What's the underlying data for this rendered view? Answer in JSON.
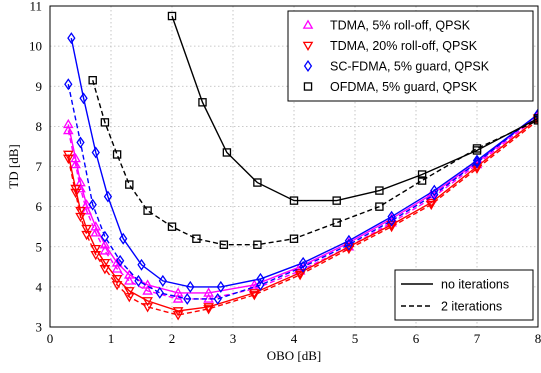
{
  "chart_data": {
    "type": "line",
    "title": "",
    "xlabel": "OBO [dB]",
    "ylabel": "TD [dB]",
    "xlim": [
      0,
      8
    ],
    "ylim": [
      3,
      11
    ],
    "xticks": [
      "0",
      "1",
      "2",
      "3",
      "4",
      "5",
      "6",
      "7",
      "8"
    ],
    "yticks": [
      "3",
      "4",
      "5",
      "6",
      "7",
      "8",
      "9",
      "10",
      "11"
    ],
    "grid": true,
    "series": [
      {
        "name": "TDMA, 5% roll-off, QPSK",
        "color": "#ff00ff",
        "marker": "triangle-up",
        "style": "solid",
        "x": [
          0.3,
          0.42,
          0.5,
          0.6,
          0.75,
          0.9,
          1.1,
          1.3,
          1.6,
          2.1,
          2.6,
          3.35,
          4.1,
          4.9,
          5.6,
          6.25,
          7.0,
          8.0
        ],
        "y": [
          8.05,
          7.2,
          6.6,
          6.05,
          5.5,
          5.05,
          4.6,
          4.3,
          4.05,
          3.85,
          3.85,
          4.05,
          4.5,
          5.1,
          5.7,
          6.3,
          7.1,
          8.3
        ]
      },
      {
        "name": "",
        "color": "#ff00ff",
        "marker": "triangle-up",
        "style": "dashed",
        "x": [
          0.3,
          0.42,
          0.5,
          0.6,
          0.75,
          0.9,
          1.1,
          1.3,
          1.6,
          2.1,
          2.6,
          3.35,
          4.1,
          4.9,
          5.6,
          6.25,
          7.0,
          8.0
        ],
        "y": [
          7.9,
          7.05,
          6.45,
          5.9,
          5.35,
          4.9,
          4.45,
          4.15,
          3.9,
          3.7,
          3.7,
          3.95,
          4.4,
          5.0,
          5.6,
          6.2,
          7.05,
          8.25
        ]
      },
      {
        "name": "TDMA, 20% roll-off, QPSK",
        "color": "#ff0000",
        "marker": "triangle-down",
        "style": "solid",
        "x": [
          0.3,
          0.42,
          0.5,
          0.6,
          0.75,
          0.9,
          1.1,
          1.3,
          1.6,
          2.1,
          2.6,
          3.35,
          4.1,
          4.9,
          5.6,
          6.25,
          7.0,
          8.0
        ],
        "y": [
          7.3,
          6.45,
          5.9,
          5.45,
          4.95,
          4.6,
          4.2,
          3.9,
          3.65,
          3.4,
          3.5,
          3.85,
          4.35,
          5.0,
          5.55,
          6.1,
          7.0,
          8.2
        ]
      },
      {
        "name": "",
        "color": "#ff0000",
        "marker": "triangle-down",
        "style": "dashed",
        "x": [
          0.3,
          0.42,
          0.5,
          0.6,
          0.75,
          0.9,
          1.1,
          1.3,
          1.6,
          2.1,
          2.6,
          3.35,
          4.1,
          4.9,
          5.6,
          6.25,
          7.0,
          8.0
        ],
        "y": [
          7.2,
          6.35,
          5.75,
          5.3,
          4.8,
          4.45,
          4.05,
          3.75,
          3.5,
          3.3,
          3.45,
          3.8,
          4.3,
          4.95,
          5.5,
          6.05,
          6.95,
          8.15
        ]
      },
      {
        "name": "SC-FDMA, 5% guard, QPSK",
        "color": "#0000ff",
        "marker": "diamond",
        "style": "solid",
        "x": [
          0.35,
          0.55,
          0.75,
          0.95,
          1.2,
          1.5,
          1.85,
          2.3,
          2.8,
          3.45,
          4.15,
          4.9,
          5.6,
          6.3,
          7.0,
          8.0
        ],
        "y": [
          10.2,
          8.7,
          7.35,
          6.25,
          5.2,
          4.55,
          4.15,
          4.0,
          4.0,
          4.2,
          4.6,
          5.15,
          5.75,
          6.4,
          7.15,
          8.3
        ]
      },
      {
        "name": "",
        "color": "#0000ff",
        "marker": "diamond",
        "style": "dashed",
        "x": [
          0.3,
          0.5,
          0.7,
          0.9,
          1.15,
          1.45,
          1.8,
          2.25,
          2.75,
          3.45,
          4.15,
          4.9,
          5.6,
          6.3,
          7.0,
          8.0
        ],
        "y": [
          9.05,
          7.6,
          6.05,
          5.25,
          4.65,
          4.15,
          3.85,
          3.7,
          3.7,
          4.05,
          4.5,
          5.05,
          5.65,
          6.3,
          7.1,
          8.3
        ]
      },
      {
        "name": "OFDMA, 5% guard, QPSK",
        "color": "#000000",
        "marker": "square",
        "style": "solid",
        "x": [
          2.0,
          2.5,
          2.9,
          3.4,
          4.0,
          4.7,
          5.4,
          6.1,
          7.0,
          8.0
        ],
        "y": [
          10.75,
          8.6,
          7.35,
          6.6,
          6.15,
          6.15,
          6.4,
          6.8,
          7.4,
          8.2
        ]
      },
      {
        "name": "",
        "color": "#000000",
        "marker": "square",
        "style": "dashed",
        "x": [
          0.7,
          0.9,
          1.1,
          1.3,
          1.6,
          2.0,
          2.4,
          2.85,
          3.4,
          4.0,
          4.7,
          5.4,
          6.1,
          7.0,
          8.0
        ],
        "y": [
          9.15,
          8.1,
          7.3,
          6.55,
          5.9,
          5.5,
          5.2,
          5.05,
          5.05,
          5.2,
          5.6,
          6.0,
          6.65,
          7.45,
          8.15
        ]
      }
    ],
    "legend_markers": {
      "entries": [
        {
          "label": "TDMA, 5% roll-off, QPSK",
          "color": "#ff00ff",
          "marker": "triangle-up"
        },
        {
          "label": "TDMA, 20% roll-off, QPSK",
          "color": "#ff0000",
          "marker": "triangle-down"
        },
        {
          "label": "SC-FDMA, 5% guard, QPSK",
          "color": "#0000ff",
          "marker": "diamond"
        },
        {
          "label": "OFDMA, 5% guard, QPSK",
          "color": "#000000",
          "marker": "square"
        }
      ],
      "placement": "top-right"
    },
    "legend_lines": {
      "entries": [
        {
          "label": "no iterations",
          "style": "solid"
        },
        {
          "label": "2 iterations",
          "style": "dashed"
        }
      ],
      "placement": "bottom-right"
    }
  }
}
